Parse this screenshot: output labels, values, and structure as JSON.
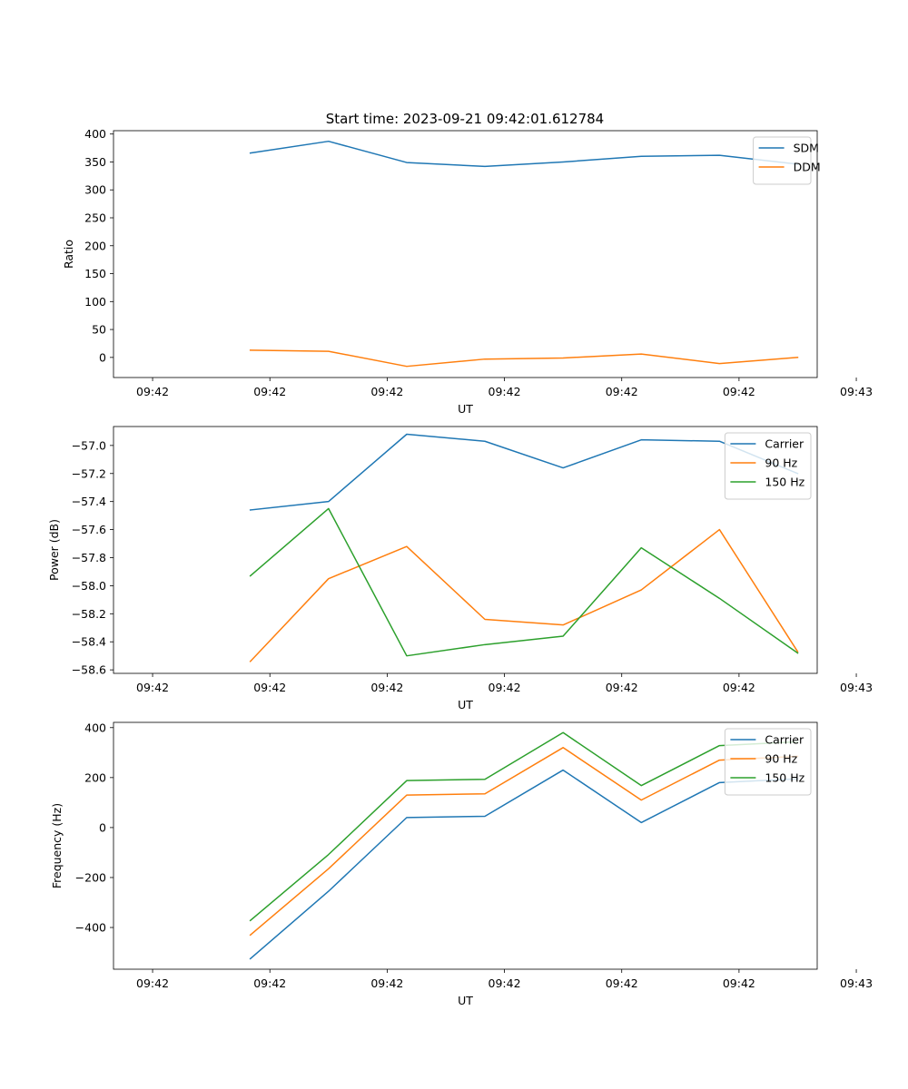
{
  "figure_title": "Start time: 2023-09-21 09:42:01.612784",
  "colors": {
    "blue": "#1f77b4",
    "orange": "#ff7f0e",
    "green": "#2ca02c"
  },
  "chart_data": [
    {
      "type": "line",
      "title": "Start time: 2023-09-21 09:42:01.612784",
      "xlabel": "UT",
      "ylabel": "Ratio",
      "x_tick_labels": [
        "09:42",
        "09:42",
        "09:42",
        "09:42",
        "09:42",
        "09:42",
        "09:43"
      ],
      "x_index": [
        1,
        2,
        3,
        4,
        5,
        6,
        7,
        8
      ],
      "xlim": [
        -0.75,
        8.25
      ],
      "ylim": [
        -36,
        406
      ],
      "y_ticks": [
        0,
        50,
        100,
        150,
        200,
        250,
        300,
        350,
        400
      ],
      "legend_loc": "upper right",
      "series": [
        {
          "name": "SDM",
          "color": "#1f77b4",
          "values": [
            366,
            387,
            349,
            342,
            350,
            360,
            362,
            346
          ]
        },
        {
          "name": "DDM",
          "color": "#ff7f0e",
          "values": [
            13,
            11,
            -16,
            -3,
            -1,
            6,
            -11,
            0
          ]
        }
      ]
    },
    {
      "type": "line",
      "xlabel": "UT",
      "ylabel": "Power (dB)",
      "x_tick_labels": [
        "09:42",
        "09:42",
        "09:42",
        "09:42",
        "09:42",
        "09:42",
        "09:43"
      ],
      "x_index": [
        1,
        2,
        3,
        4,
        5,
        6,
        7,
        8
      ],
      "xlim": [
        -0.75,
        8.25
      ],
      "ylim": [
        -58.625,
        -56.865
      ],
      "y_ticks": [
        -58.6,
        -58.4,
        -58.2,
        -58.0,
        -57.8,
        -57.6,
        -57.4,
        -57.2,
        -57.0
      ],
      "y_tick_labels": [
        "−58.6",
        "−58.4",
        "−58.2",
        "−58.0",
        "−57.8",
        "−57.6",
        "−57.4",
        "−57.2",
        "−57.0"
      ],
      "legend_loc": "upper right",
      "series": [
        {
          "name": "Carrier",
          "color": "#1f77b4",
          "values": [
            -57.46,
            -57.4,
            -56.92,
            -56.97,
            -57.16,
            -56.96,
            -56.97,
            -57.2
          ]
        },
        {
          "name": "90 Hz",
          "color": "#ff7f0e",
          "values": [
            -58.54,
            -57.95,
            -57.72,
            -58.24,
            -58.28,
            -58.03,
            -57.6,
            -58.47
          ]
        },
        {
          "name": "150 Hz",
          "color": "#2ca02c",
          "values": [
            -57.93,
            -57.45,
            -58.5,
            -58.42,
            -58.36,
            -57.73,
            -58.09,
            -58.48
          ]
        }
      ]
    },
    {
      "type": "line",
      "xlabel": "UT",
      "ylabel": "Frequency (Hz)",
      "x_tick_labels": [
        "09:42",
        "09:42",
        "09:42",
        "09:42",
        "09:42",
        "09:42",
        "09:43"
      ],
      "x_index": [
        1,
        2,
        3,
        4,
        5,
        6,
        7,
        8
      ],
      "xlim": [
        -0.75,
        8.25
      ],
      "ylim": [
        -567,
        421
      ],
      "y_ticks": [
        -400,
        -200,
        0,
        200,
        400
      ],
      "y_tick_labels": [
        "−400",
        "−200",
        "0",
        "200",
        "400"
      ],
      "legend_loc": "upper right",
      "series": [
        {
          "name": "Carrier",
          "color": "#1f77b4",
          "values": [
            -525,
            -255,
            40,
            45,
            230,
            20,
            180,
            195
          ]
        },
        {
          "name": "90 Hz",
          "color": "#ff7f0e",
          "values": [
            -430,
            -165,
            130,
            135,
            320,
            110,
            270,
            285
          ]
        },
        {
          "name": "150 Hz",
          "color": "#2ca02c",
          "values": [
            -372,
            -108,
            188,
            193,
            380,
            168,
            328,
            343
          ]
        }
      ]
    }
  ]
}
